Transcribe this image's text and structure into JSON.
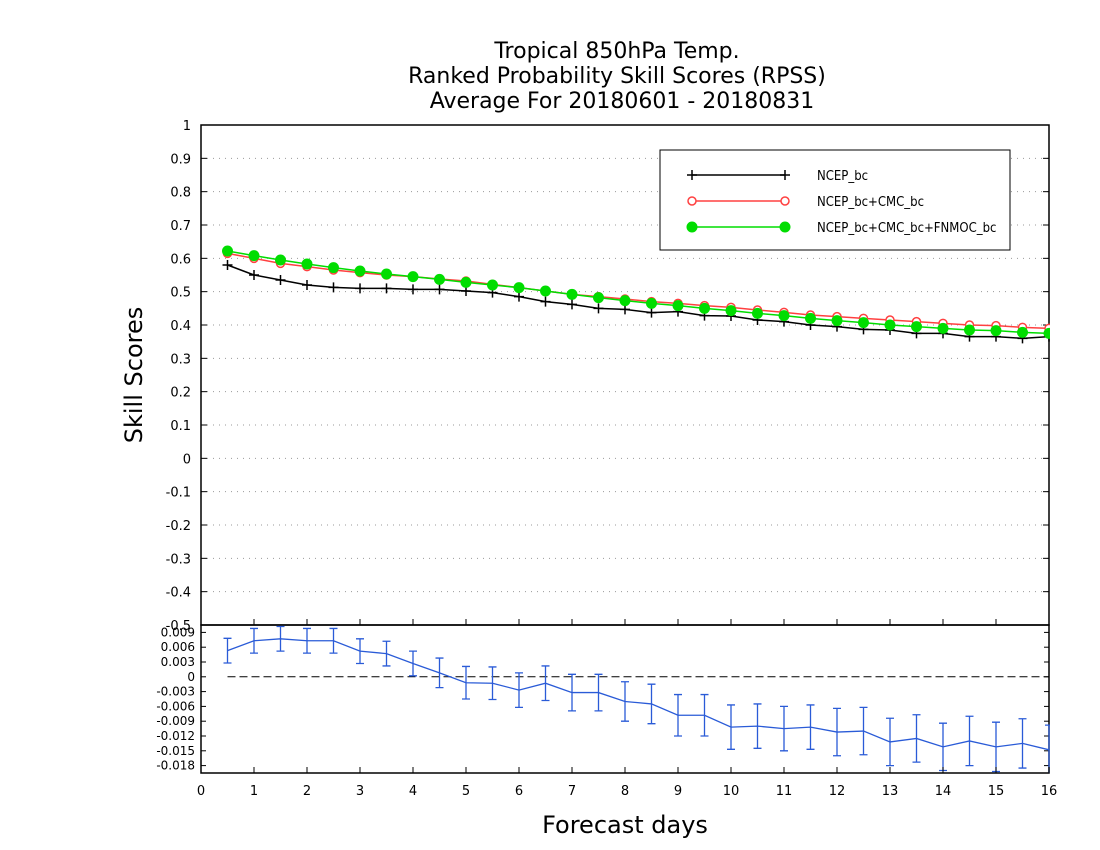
{
  "title_lines": [
    "Tropical 850hPa Temp.",
    "Ranked Probability Skill Scores (RPSS)",
    "Average For 20180601 - 20180831"
  ],
  "chart_data": [
    {
      "type": "line",
      "ylabel": "Skill Scores",
      "xlabel": "Forecast days",
      "xlim": [
        0,
        16
      ],
      "ylim": [
        -0.5,
        1
      ],
      "yticks": [
        "-0.5",
        "-0.4",
        "-0.3",
        "-0.2",
        "-0.1",
        "0",
        "0.1",
        "0.2",
        "0.3",
        "0.4",
        "0.5",
        "0.6",
        "0.7",
        "0.8",
        "0.9",
        "1"
      ],
      "xticks": [
        "0",
        "1",
        "2",
        "3",
        "4",
        "5",
        "6",
        "7",
        "8",
        "9",
        "10",
        "11",
        "12",
        "13",
        "14",
        "15",
        "16"
      ],
      "grid": true,
      "legend_position": "top-right",
      "x": [
        0.5,
        1,
        1.5,
        2,
        2.5,
        3,
        3.5,
        4,
        4.5,
        5,
        5.5,
        6,
        6.5,
        7,
        7.5,
        8,
        8.5,
        9,
        9.5,
        10,
        10.5,
        11,
        11.5,
        12,
        12.5,
        13,
        13.5,
        14,
        14.5,
        15,
        15.5,
        16
      ],
      "series": [
        {
          "name": "NCEP_bc",
          "color": "#000000",
          "marker": "plus",
          "values": [
            0.58,
            0.55,
            0.535,
            0.52,
            0.513,
            0.51,
            0.51,
            0.507,
            0.507,
            0.502,
            0.497,
            0.485,
            0.47,
            0.462,
            0.45,
            0.447,
            0.437,
            0.44,
            0.428,
            0.427,
            0.415,
            0.41,
            0.4,
            0.395,
            0.387,
            0.385,
            0.375,
            0.375,
            0.365,
            0.365,
            0.36,
            0.365
          ]
        },
        {
          "name": "NCEP_bc+CMC_bc",
          "color": "#ff4040",
          "marker": "open-circle",
          "values": [
            0.615,
            0.6,
            0.585,
            0.575,
            0.565,
            0.557,
            0.55,
            0.545,
            0.538,
            0.532,
            0.522,
            0.512,
            0.502,
            0.492,
            0.485,
            0.478,
            0.47,
            0.465,
            0.458,
            0.453,
            0.445,
            0.438,
            0.43,
            0.425,
            0.42,
            0.415,
            0.41,
            0.405,
            0.4,
            0.398,
            0.393,
            0.39
          ]
        },
        {
          "name": "NCEP_bc+CMC_bc+FNMOC_bc",
          "color": "#00dd00",
          "marker": "filled-circle",
          "values": [
            0.622,
            0.608,
            0.595,
            0.583,
            0.572,
            0.562,
            0.553,
            0.545,
            0.537,
            0.528,
            0.52,
            0.512,
            0.502,
            0.492,
            0.482,
            0.473,
            0.465,
            0.458,
            0.45,
            0.443,
            0.435,
            0.428,
            0.42,
            0.413,
            0.407,
            0.4,
            0.395,
            0.39,
            0.385,
            0.383,
            0.378,
            0.375
          ]
        }
      ]
    },
    {
      "type": "line",
      "xlim": [
        0,
        16
      ],
      "ylim": [
        -0.0195,
        0.0105
      ],
      "yticks": [
        "0.009",
        "0.006",
        "0.003",
        "0",
        "-0.003",
        "-0.006",
        "-0.009",
        "-0.012",
        "-0.015",
        "-0.018"
      ],
      "reference_line": 0,
      "series": [
        {
          "name": "",
          "color": "#2a5bd7",
          "marker": "error-bar",
          "x": [
            0.5,
            1,
            1.5,
            2,
            2.5,
            3,
            3.5,
            4,
            4.5,
            5,
            5.5,
            6,
            6.5,
            7,
            7.5,
            8,
            8.5,
            9,
            9.5,
            10,
            10.5,
            11,
            11.5,
            12,
            12.5,
            13,
            13.5,
            14,
            14.5,
            15,
            15.5,
            16
          ],
          "values": [
            0.0053,
            0.0073,
            0.0077,
            0.0073,
            0.0073,
            0.0052,
            0.0047,
            0.0027,
            0.0008,
            -0.0012,
            -0.0013,
            -0.0027,
            -0.0013,
            -0.0032,
            -0.0032,
            -0.005,
            -0.0055,
            -0.0078,
            -0.0078,
            -0.0102,
            -0.01,
            -0.0105,
            -0.0102,
            -0.0112,
            -0.011,
            -0.0132,
            -0.0125,
            -0.0142,
            -0.013,
            -0.0142,
            -0.0135,
            -0.0148
          ],
          "error": [
            0.0025,
            0.0025,
            0.0025,
            0.0025,
            0.0025,
            0.0025,
            0.0025,
            0.0025,
            0.003,
            0.0033,
            0.0033,
            0.0035,
            0.0035,
            0.0037,
            0.0037,
            0.004,
            0.004,
            0.0042,
            0.0042,
            0.0045,
            0.0045,
            0.0045,
            0.0045,
            0.0048,
            0.0048,
            0.0048,
            0.0048,
            0.0048,
            0.005,
            0.005,
            0.005,
            0.005
          ]
        }
      ]
    }
  ]
}
